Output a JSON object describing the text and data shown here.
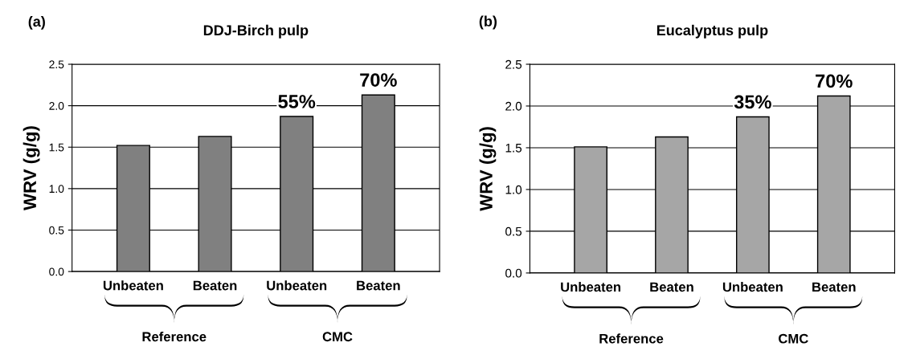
{
  "chart_data": [
    {
      "type": "bar",
      "title": "DDJ-Birch pulp",
      "ylabel": "WRV (g/g)",
      "categories": [
        "Unbeaten",
        "Beaten",
        "Unbeaten",
        "Beaten"
      ],
      "values": [
        1.52,
        1.63,
        1.87,
        2.13
      ],
      "color": "#808080",
      "ylim": [
        0,
        2.5
      ],
      "yticks": [
        {
          "value": 0,
          "label": "0.0"
        },
        {
          "value": 0.5,
          "label": "0.5"
        },
        {
          "value": 1,
          "label": "1.0"
        },
        {
          "value": 1.5,
          "label": "1.5"
        },
        {
          "value": 2,
          "label": "2.0"
        },
        {
          "value": 2.5,
          "label": "2.5"
        }
      ],
      "grid": "y",
      "annotations": [
        "(a)",
        "Reference",
        "CMC",
        "55%",
        "70%"
      ]
    },
    {
      "type": "bar",
      "title": "Eucalyptus pulp",
      "ylabel": "WRV (g/g)",
      "categories": [
        "Unbeaten",
        "Beaten",
        "Unbeaten",
        "Beaten"
      ],
      "values": [
        1.51,
        1.63,
        1.87,
        2.12
      ],
      "color": "#a6a6a6",
      "ylim": [
        0,
        2.5
      ],
      "yticks": [
        {
          "value": 0,
          "label": "0.0"
        },
        {
          "value": 0.5,
          "label": "0.5"
        },
        {
          "value": 1,
          "label": "1.0"
        },
        {
          "value": 1.5,
          "label": "1.5"
        },
        {
          "value": 2,
          "label": "2.0"
        },
        {
          "value": 2.5,
          "label": "2.5"
        }
      ],
      "grid": "y",
      "annotations": [
        "(b)",
        "Reference",
        "CMC",
        "35%",
        "70%"
      ]
    }
  ]
}
